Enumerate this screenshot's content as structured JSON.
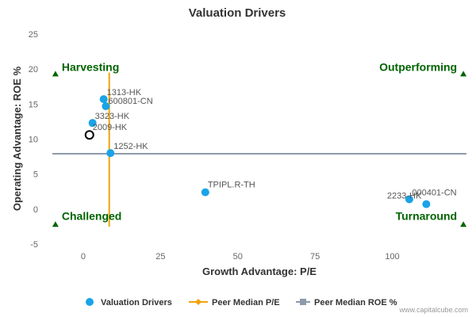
{
  "chart_data": {
    "type": "scatter",
    "title": "Valuation Drivers",
    "xlabel": "Growth Advantage: P/E",
    "ylabel": "Operating Advantage: ROE %",
    "xlim": [
      -10,
      124
    ],
    "ylim": [
      -5,
      25
    ],
    "xticks": [
      0,
      25,
      50,
      75,
      100
    ],
    "yticks": [
      -5,
      0,
      5,
      10,
      15,
      20,
      25
    ],
    "grid": false,
    "legend_position": "bottom",
    "series": [
      {
        "name": "Valuation Drivers",
        "color": "#1aa3e8",
        "points": [
          {
            "label": "1313-HK",
            "x": 6.6,
            "y": 15.7
          },
          {
            "label": "600801-CN",
            "x": 7.3,
            "y": 14.7
          },
          {
            "label": "3323-HK",
            "x": 3.0,
            "y": 12.3
          },
          {
            "label": "1252-HK",
            "x": 8.8,
            "y": 8.0
          },
          {
            "label": "TPIPL.R-TH",
            "x": 39.5,
            "y": 2.4
          },
          {
            "label": "2233-HK",
            "x": 105.5,
            "y": 1.4
          },
          {
            "label": "000401-CN",
            "x": 111.0,
            "y": 0.7
          }
        ]
      },
      {
        "name": "Peer Median P/E",
        "color": "#f0a30a",
        "type": "vertical-line",
        "x": 8.4,
        "y_range": [
          -2.5,
          19.5
        ]
      },
      {
        "name": "Peer Median ROE %",
        "color": "#8d9aaa",
        "type": "horizontal-line",
        "y": 7.9,
        "x_range": [
          -10,
          124
        ]
      }
    ],
    "highlight": {
      "label": "2009-HK",
      "x": 2.0,
      "y": 10.6
    },
    "quadrants": [
      {
        "label": "Harvesting",
        "marker_x": -9,
        "marker_y": 19.3
      },
      {
        "label": "Outperforming",
        "marker_x": 123,
        "marker_y": 19.3
      },
      {
        "label": "Challenged",
        "marker_x": -9,
        "marker_y": -2.2
      },
      {
        "label": "Turnaround",
        "marker_x": 123,
        "marker_y": -2.2
      }
    ],
    "marker_color": "#006400",
    "credit": "www.capitalcube.com"
  }
}
